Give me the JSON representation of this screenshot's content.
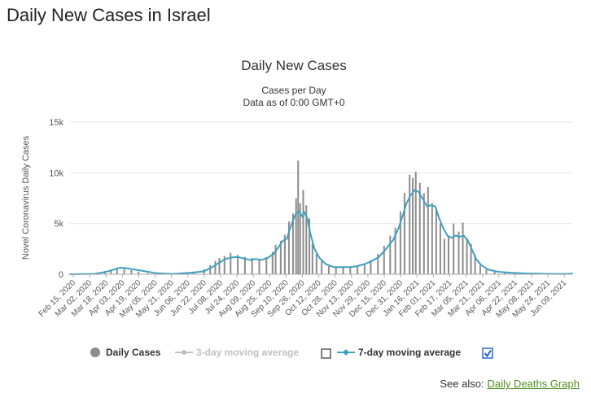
{
  "page": {
    "title": "Daily New Cases in Israel",
    "see_also_prefix": "See also:",
    "see_also_link": "Daily Deaths Graph"
  },
  "legend": {
    "daily_cases": "Daily Cases",
    "ma3": "3-day moving average",
    "ma7": "7-day moving average",
    "ma3_checked": false,
    "ma7_checked": true
  },
  "colors": {
    "bars": "#8c8c8c",
    "ma7_line": "#3fa1c0",
    "ma3_disabled": "#c0c0c0",
    "link": "#4d8f1f",
    "checkbox": "#1b5fd1"
  },
  "chart_data": {
    "type": "bar",
    "title": "Daily New Cases",
    "subtitle_lines": [
      "Cases per Day",
      "Data as of 0:00 GMT+0"
    ],
    "ylabel": "Novel Coronavirus Daily Cases",
    "ylim": [
      0,
      15000
    ],
    "yticks": [
      {
        "value": 0,
        "label": "0"
      },
      {
        "value": 5000,
        "label": "5k"
      },
      {
        "value": 10000,
        "label": "10k"
      },
      {
        "value": 15000,
        "label": "15k"
      }
    ],
    "x_range": [
      "2020-02-15",
      "2021-06-20"
    ],
    "x_tick_labels": [
      "Feb 15, 2020",
      "Mar 02, 2020",
      "Mar 18, 2020",
      "Apr 03, 2020",
      "Apr 19, 2020",
      "May 05, 2020",
      "May 21, 2020",
      "Jun 06, 2020",
      "Jun 22, 2020",
      "Jul 08, 2020",
      "Jul 24, 2020",
      "Aug 09, 2020",
      "Aug 25, 2020",
      "Sep 10, 2020",
      "Sep 26, 2020",
      "Oct 12, 2020",
      "Oct 28, 2020",
      "Nov 13, 2020",
      "Nov 29, 2020",
      "Dec 15, 2020",
      "Dec 31, 2020",
      "Jan 16, 2021",
      "Feb 01, 2021",
      "Feb 17, 2021",
      "Mar 05, 2021",
      "Mar 21, 2021",
      "Apr 06, 2021",
      "Apr 22, 2021",
      "May 08, 2021",
      "May 24, 2021",
      "Jun 09, 2021"
    ],
    "grid": "horizontal",
    "legend_position": "bottom",
    "series": [
      {
        "name": "Daily Cases",
        "type": "bar",
        "points": [
          [
            "2020-03-01",
            5
          ],
          [
            "2020-03-10",
            60
          ],
          [
            "2020-03-20",
            320
          ],
          [
            "2020-03-26",
            480
          ],
          [
            "2020-04-01",
            650
          ],
          [
            "2020-04-08",
            520
          ],
          [
            "2020-04-15",
            400
          ],
          [
            "2020-04-22",
            250
          ],
          [
            "2020-05-01",
            120
          ],
          [
            "2020-05-15",
            30
          ],
          [
            "2020-05-28",
            60
          ],
          [
            "2020-06-05",
            170
          ],
          [
            "2020-06-15",
            280
          ],
          [
            "2020-06-25",
            500
          ],
          [
            "2020-07-01",
            900
          ],
          [
            "2020-07-06",
            1300
          ],
          [
            "2020-07-10",
            1600
          ],
          [
            "2020-07-15",
            1800
          ],
          [
            "2020-07-21",
            2100
          ],
          [
            "2020-07-28",
            1900
          ],
          [
            "2020-08-04",
            1700
          ],
          [
            "2020-08-11",
            1600
          ],
          [
            "2020-08-18",
            1500
          ],
          [
            "2020-08-25",
            1700
          ],
          [
            "2020-08-31",
            2200
          ],
          [
            "2020-09-03",
            2900
          ],
          [
            "2020-09-08",
            3300
          ],
          [
            "2020-09-12",
            3900
          ],
          [
            "2020-09-16",
            5200
          ],
          [
            "2020-09-20",
            6000
          ],
          [
            "2020-09-23",
            7500
          ],
          [
            "2020-09-25",
            11200
          ],
          [
            "2020-09-27",
            7000
          ],
          [
            "2020-09-30",
            8300
          ],
          [
            "2020-10-03",
            6800
          ],
          [
            "2020-10-06",
            5500
          ],
          [
            "2020-10-09",
            3000
          ],
          [
            "2020-10-13",
            2000
          ],
          [
            "2020-10-18",
            1300
          ],
          [
            "2020-10-25",
            800
          ],
          [
            "2020-11-01",
            650
          ],
          [
            "2020-11-08",
            650
          ],
          [
            "2020-11-15",
            700
          ],
          [
            "2020-11-22",
            800
          ],
          [
            "2020-11-29",
            1000
          ],
          [
            "2020-12-05",
            1400
          ],
          [
            "2020-12-12",
            2000
          ],
          [
            "2020-12-18",
            2800
          ],
          [
            "2020-12-24",
            3800
          ],
          [
            "2020-12-29",
            4600
          ],
          [
            "2021-01-03",
            6200
          ],
          [
            "2021-01-07",
            8000
          ],
          [
            "2021-01-12",
            9800
          ],
          [
            "2021-01-15",
            9500
          ],
          [
            "2021-01-18",
            10100
          ],
          [
            "2021-01-22",
            9000
          ],
          [
            "2021-01-26",
            8000
          ],
          [
            "2021-01-30",
            8600
          ],
          [
            "2021-02-03",
            7000
          ],
          [
            "2021-02-07",
            6500
          ],
          [
            "2021-02-11",
            5000
          ],
          [
            "2021-02-15",
            3500
          ],
          [
            "2021-02-19",
            3800
          ],
          [
            "2021-02-24",
            5000
          ],
          [
            "2021-03-01",
            4200
          ],
          [
            "2021-03-05",
            5100
          ],
          [
            "2021-03-09",
            3600
          ],
          [
            "2021-03-13",
            3000
          ],
          [
            "2021-03-17",
            1900
          ],
          [
            "2021-03-22",
            900
          ],
          [
            "2021-03-28",
            450
          ],
          [
            "2021-04-05",
            250
          ],
          [
            "2021-04-15",
            180
          ],
          [
            "2021-04-25",
            100
          ],
          [
            "2021-05-05",
            80
          ],
          [
            "2021-05-15",
            50
          ],
          [
            "2021-05-25",
            40
          ],
          [
            "2021-06-05",
            30
          ],
          [
            "2021-06-15",
            35
          ],
          [
            "2021-06-20",
            120
          ]
        ]
      },
      {
        "name": "7-day moving average",
        "type": "line",
        "points": [
          [
            "2020-02-15",
            0
          ],
          [
            "2020-03-10",
            40
          ],
          [
            "2020-03-22",
            250
          ],
          [
            "2020-04-01",
            560
          ],
          [
            "2020-04-05",
            650
          ],
          [
            "2020-04-12",
            560
          ],
          [
            "2020-04-25",
            350
          ],
          [
            "2020-05-10",
            100
          ],
          [
            "2020-05-25",
            30
          ],
          [
            "2020-06-05",
            100
          ],
          [
            "2020-06-15",
            170
          ],
          [
            "2020-06-25",
            300
          ],
          [
            "2020-07-03",
            700
          ],
          [
            "2020-07-10",
            1150
          ],
          [
            "2020-07-16",
            1500
          ],
          [
            "2020-07-22",
            1650
          ],
          [
            "2020-07-28",
            1700
          ],
          [
            "2020-08-03",
            1550
          ],
          [
            "2020-08-09",
            1400
          ],
          [
            "2020-08-15",
            1500
          ],
          [
            "2020-08-20",
            1400
          ],
          [
            "2020-08-26",
            1600
          ],
          [
            "2020-09-01",
            2000
          ],
          [
            "2020-09-06",
            2700
          ],
          [
            "2020-09-10",
            3300
          ],
          [
            "2020-09-14",
            3500
          ],
          [
            "2020-09-17",
            4500
          ],
          [
            "2020-09-20",
            5300
          ],
          [
            "2020-09-23",
            6000
          ],
          [
            "2020-09-26",
            6200
          ],
          [
            "2020-09-29",
            5700
          ],
          [
            "2020-10-01",
            6100
          ],
          [
            "2020-10-04",
            5500
          ],
          [
            "2020-10-07",
            4000
          ],
          [
            "2020-10-11",
            2500
          ],
          [
            "2020-10-16",
            1600
          ],
          [
            "2020-10-22",
            1000
          ],
          [
            "2020-10-30",
            700
          ],
          [
            "2020-11-07",
            700
          ],
          [
            "2020-11-15",
            700
          ],
          [
            "2020-11-22",
            800
          ],
          [
            "2020-11-29",
            1000
          ],
          [
            "2020-12-06",
            1300
          ],
          [
            "2020-12-13",
            1700
          ],
          [
            "2020-12-20",
            2500
          ],
          [
            "2020-12-27",
            3400
          ],
          [
            "2021-01-01",
            4500
          ],
          [
            "2021-01-05",
            5700
          ],
          [
            "2021-01-09",
            7000
          ],
          [
            "2021-01-13",
            7800
          ],
          [
            "2021-01-17",
            8300
          ],
          [
            "2021-01-21",
            8100
          ],
          [
            "2021-01-25",
            7400
          ],
          [
            "2021-01-29",
            6700
          ],
          [
            "2021-02-02",
            6800
          ],
          [
            "2021-02-06",
            6700
          ],
          [
            "2021-02-10",
            5500
          ],
          [
            "2021-02-14",
            4500
          ],
          [
            "2021-02-18",
            3800
          ],
          [
            "2021-02-22",
            3600
          ],
          [
            "2021-02-26",
            3800
          ],
          [
            "2021-03-02",
            3700
          ],
          [
            "2021-03-06",
            3800
          ],
          [
            "2021-03-10",
            3300
          ],
          [
            "2021-03-14",
            2400
          ],
          [
            "2021-03-18",
            1500
          ],
          [
            "2021-03-23",
            900
          ],
          [
            "2021-03-30",
            450
          ],
          [
            "2021-04-08",
            250
          ],
          [
            "2021-04-20",
            150
          ],
          [
            "2021-05-05",
            80
          ],
          [
            "2021-05-25",
            40
          ],
          [
            "2021-06-10",
            30
          ],
          [
            "2021-06-20",
            60
          ]
        ]
      }
    ]
  }
}
